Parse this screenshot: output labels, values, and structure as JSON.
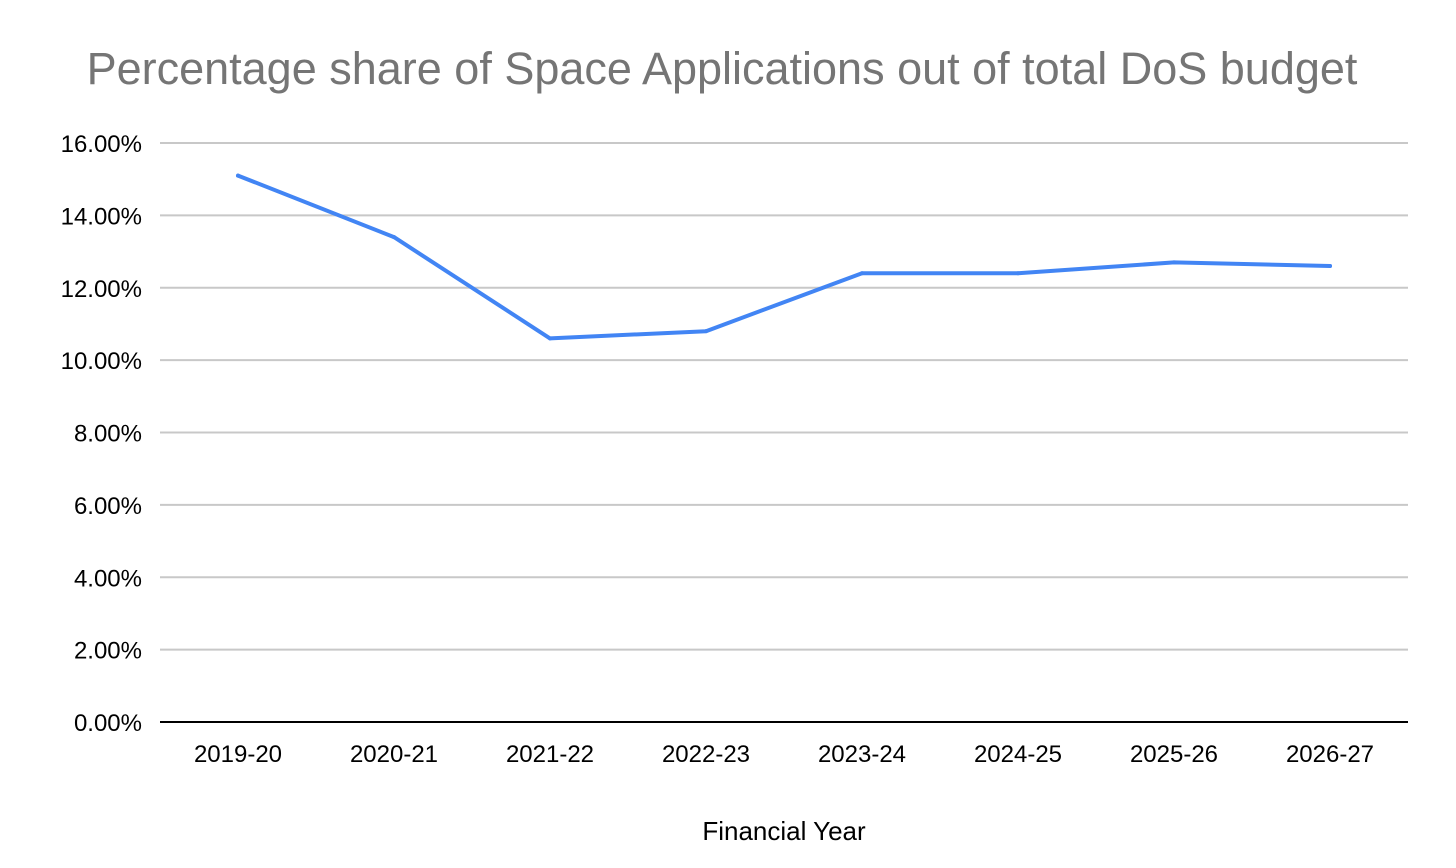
{
  "chart_data": {
    "type": "line",
    "title": "Percentage share of Space Applications out of total DoS budget",
    "xlabel": "Financial Year",
    "ylabel": "",
    "categories": [
      "2019-20",
      "2020-21",
      "2021-22",
      "2022-23",
      "2023-24",
      "2024-25",
      "2025-26",
      "2026-27"
    ],
    "series": [
      {
        "values": [
          15.1,
          13.4,
          10.6,
          10.8,
          12.4,
          12.4,
          12.7,
          12.6
        ],
        "color": "#4285f4"
      }
    ],
    "ylim": [
      0,
      16
    ],
    "yticks": [
      0,
      2,
      4,
      6,
      8,
      10,
      12,
      14,
      16
    ],
    "ytick_labels": [
      "0.00%",
      "2.00%",
      "4.00%",
      "6.00%",
      "8.00%",
      "10.00%",
      "12.00%",
      "14.00%",
      "16.00%"
    ],
    "grid": true,
    "legend": "none"
  }
}
